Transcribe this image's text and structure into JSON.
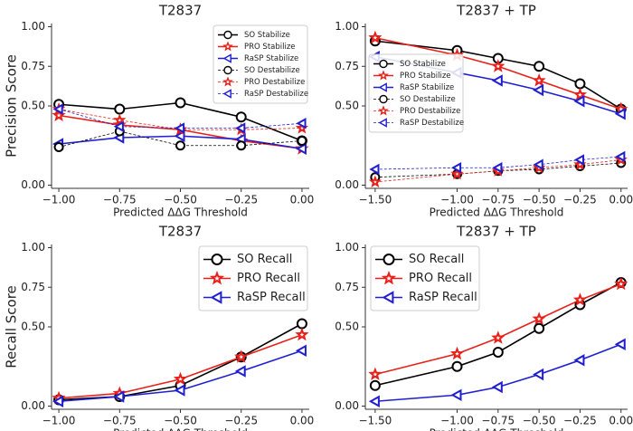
{
  "chart_data": [
    {
      "type": "line",
      "title": "T2837",
      "xlabel": "Predicted ΔΔG Threshold",
      "ylabel": "Precision Score",
      "x": [
        -1.0,
        -0.75,
        -0.5,
        -0.25,
        0.0
      ],
      "series": [
        {
          "name": "SO Stabilize",
          "color": "#000000",
          "marker": "circle",
          "linestyle": "solid",
          "values": [
            0.51,
            0.48,
            0.52,
            0.43,
            0.28
          ]
        },
        {
          "name": "PRO Stabilize",
          "color": "#e8201a",
          "marker": "star",
          "linestyle": "solid",
          "values": [
            0.44,
            0.38,
            0.35,
            0.28,
            0.23
          ]
        },
        {
          "name": "RaSP Stabilize",
          "color": "#1f1fd1",
          "marker": "triangle-left",
          "linestyle": "solid",
          "values": [
            0.26,
            0.3,
            0.31,
            0.29,
            0.23
          ]
        },
        {
          "name": "SO Destabilize",
          "color": "#000000",
          "marker": "circle",
          "linestyle": "dashed",
          "values": [
            0.24,
            0.34,
            0.25,
            0.25,
            0.28
          ]
        },
        {
          "name": "PRO Destabilize",
          "color": "#e8201a",
          "marker": "star",
          "linestyle": "dashed",
          "values": [
            0.48,
            0.41,
            0.35,
            0.35,
            0.36
          ]
        },
        {
          "name": "RaSP Destabilize",
          "color": "#1f1fd1",
          "marker": "triangle-left",
          "linestyle": "dashed",
          "values": [
            0.48,
            0.37,
            0.36,
            0.36,
            0.39
          ]
        }
      ],
      "xlim": [
        -1.03,
        0.03
      ],
      "ylim": [
        -0.02,
        1.02
      ],
      "xticks": [
        {
          "value": -1.0,
          "label": "−1.00"
        },
        {
          "value": -0.75,
          "label": "−0.75"
        },
        {
          "value": -0.5,
          "label": "−0.50"
        },
        {
          "value": -0.25,
          "label": "−0.25"
        },
        {
          "value": 0,
          "label": "0.00"
        }
      ],
      "yticks": [
        {
          "value": 0,
          "label": "0.00"
        },
        {
          "value": 0.5,
          "label": "0.50"
        },
        {
          "value": 0.75,
          "label": "0.75"
        },
        {
          "value": 1,
          "label": "1.00"
        }
      ],
      "legend": "upper right"
    },
    {
      "type": "line",
      "title": "T2837 + TP",
      "xlabel": "Predicted ΔΔG Threshold",
      "x": [
        -1.5,
        -1.0,
        -0.75,
        -0.5,
        -0.25,
        0.0
      ],
      "series": [
        {
          "name": "SO Stabilize",
          "color": "#000000",
          "marker": "circle",
          "linestyle": "solid",
          "values": [
            0.91,
            0.85,
            0.8,
            0.75,
            0.64,
            0.48
          ]
        },
        {
          "name": "PRO Stabilize",
          "color": "#e8201a",
          "marker": "star",
          "linestyle": "solid",
          "values": [
            0.93,
            0.82,
            0.75,
            0.66,
            0.57,
            0.48
          ]
        },
        {
          "name": "RaSP Stabilize",
          "color": "#1f1fd1",
          "marker": "triangle-left",
          "linestyle": "solid",
          "values": [
            0.81,
            0.71,
            0.66,
            0.6,
            0.53,
            0.45
          ]
        },
        {
          "name": "SO Destabilize",
          "color": "#000000",
          "marker": "circle",
          "linestyle": "dashed",
          "values": [
            0.05,
            0.07,
            0.09,
            0.1,
            0.12,
            0.14
          ]
        },
        {
          "name": "PRO Destabilize",
          "color": "#e8201a",
          "marker": "star",
          "linestyle": "dashed",
          "values": [
            0.02,
            0.07,
            0.09,
            0.11,
            0.13,
            0.16
          ]
        },
        {
          "name": "RaSP Destabilize",
          "color": "#1f1fd1",
          "marker": "triangle-left",
          "linestyle": "dashed",
          "values": [
            0.1,
            0.11,
            0.11,
            0.13,
            0.16,
            0.18
          ]
        }
      ],
      "xlim": [
        -1.56,
        0.04
      ],
      "ylim": [
        -0.02,
        1.02
      ],
      "xticks": [
        {
          "value": -1.5,
          "label": "−1.50"
        },
        {
          "value": -1.0,
          "label": "−1.00"
        },
        {
          "value": -0.75,
          "label": "−0.75"
        },
        {
          "value": -0.5,
          "label": "−0.50"
        },
        {
          "value": -0.25,
          "label": "−0.25"
        },
        {
          "value": 0,
          "label": "0.00"
        }
      ],
      "yticks": [
        {
          "value": 0,
          "label": "0.00"
        },
        {
          "value": 0.5,
          "label": "0.50"
        },
        {
          "value": 0.75,
          "label": "0.75"
        },
        {
          "value": 1,
          "label": "1.00"
        }
      ],
      "legend": "center left"
    },
    {
      "type": "line",
      "title": "T2837",
      "xlabel": "Predicted ΔΔG Threshold",
      "ylabel": "Recall Score",
      "x": [
        -1.0,
        -0.75,
        -0.5,
        -0.25,
        0.0
      ],
      "series": [
        {
          "name": "SO Recall",
          "color": "#000000",
          "marker": "circle",
          "linestyle": "solid",
          "values": [
            0.04,
            0.06,
            0.13,
            0.31,
            0.52
          ]
        },
        {
          "name": "PRO Recall",
          "color": "#e8201a",
          "marker": "star",
          "linestyle": "solid",
          "values": [
            0.05,
            0.08,
            0.17,
            0.31,
            0.45
          ]
        },
        {
          "name": "RaSP Recall",
          "color": "#1f1fd1",
          "marker": "triangle-left",
          "linestyle": "solid",
          "values": [
            0.03,
            0.06,
            0.1,
            0.22,
            0.35
          ]
        }
      ],
      "xlim": [
        -1.03,
        0.03
      ],
      "ylim": [
        -0.02,
        1.02
      ],
      "xticks": [
        {
          "value": -1.0,
          "label": "−1.00"
        },
        {
          "value": -0.75,
          "label": "−0.75"
        },
        {
          "value": -0.5,
          "label": "−0.50"
        },
        {
          "value": -0.25,
          "label": "−0.25"
        },
        {
          "value": 0,
          "label": "0.00"
        }
      ],
      "yticks": [
        {
          "value": 0,
          "label": "0.00"
        },
        {
          "value": 0.5,
          "label": "0.50"
        },
        {
          "value": 0.75,
          "label": "0.75"
        },
        {
          "value": 1,
          "label": "1.00"
        }
      ],
      "legend": "upper right"
    },
    {
      "type": "line",
      "title": "T2837 + TP",
      "xlabel": "Predicted ΔΔG Threshold",
      "x": [
        -1.5,
        -1.0,
        -0.75,
        -0.5,
        -0.25,
        0.0
      ],
      "series": [
        {
          "name": "SO Recall",
          "color": "#000000",
          "marker": "circle",
          "linestyle": "solid",
          "values": [
            0.13,
            0.25,
            0.34,
            0.49,
            0.64,
            0.78
          ]
        },
        {
          "name": "PRO Recall",
          "color": "#e8201a",
          "marker": "star",
          "linestyle": "solid",
          "values": [
            0.2,
            0.33,
            0.43,
            0.55,
            0.67,
            0.77
          ]
        },
        {
          "name": "RaSP Recall",
          "color": "#1f1fd1",
          "marker": "triangle-left",
          "linestyle": "solid",
          "values": [
            0.03,
            0.07,
            0.12,
            0.2,
            0.29,
            0.39
          ]
        }
      ],
      "xlim": [
        -1.56,
        0.04
      ],
      "ylim": [
        -0.02,
        1.02
      ],
      "xticks": [
        {
          "value": -1.5,
          "label": "−1.50"
        },
        {
          "value": -1.0,
          "label": "−1.00"
        },
        {
          "value": -0.75,
          "label": "−0.75"
        },
        {
          "value": -0.5,
          "label": "−0.50"
        },
        {
          "value": -0.25,
          "label": "−0.25"
        },
        {
          "value": 0,
          "label": "0.00"
        }
      ],
      "yticks": [
        {
          "value": 0,
          "label": "0.00"
        },
        {
          "value": 0.5,
          "label": "0.50"
        },
        {
          "value": 0.75,
          "label": "0.75"
        },
        {
          "value": 1,
          "label": "1.00"
        }
      ],
      "legend": "upper left"
    }
  ]
}
